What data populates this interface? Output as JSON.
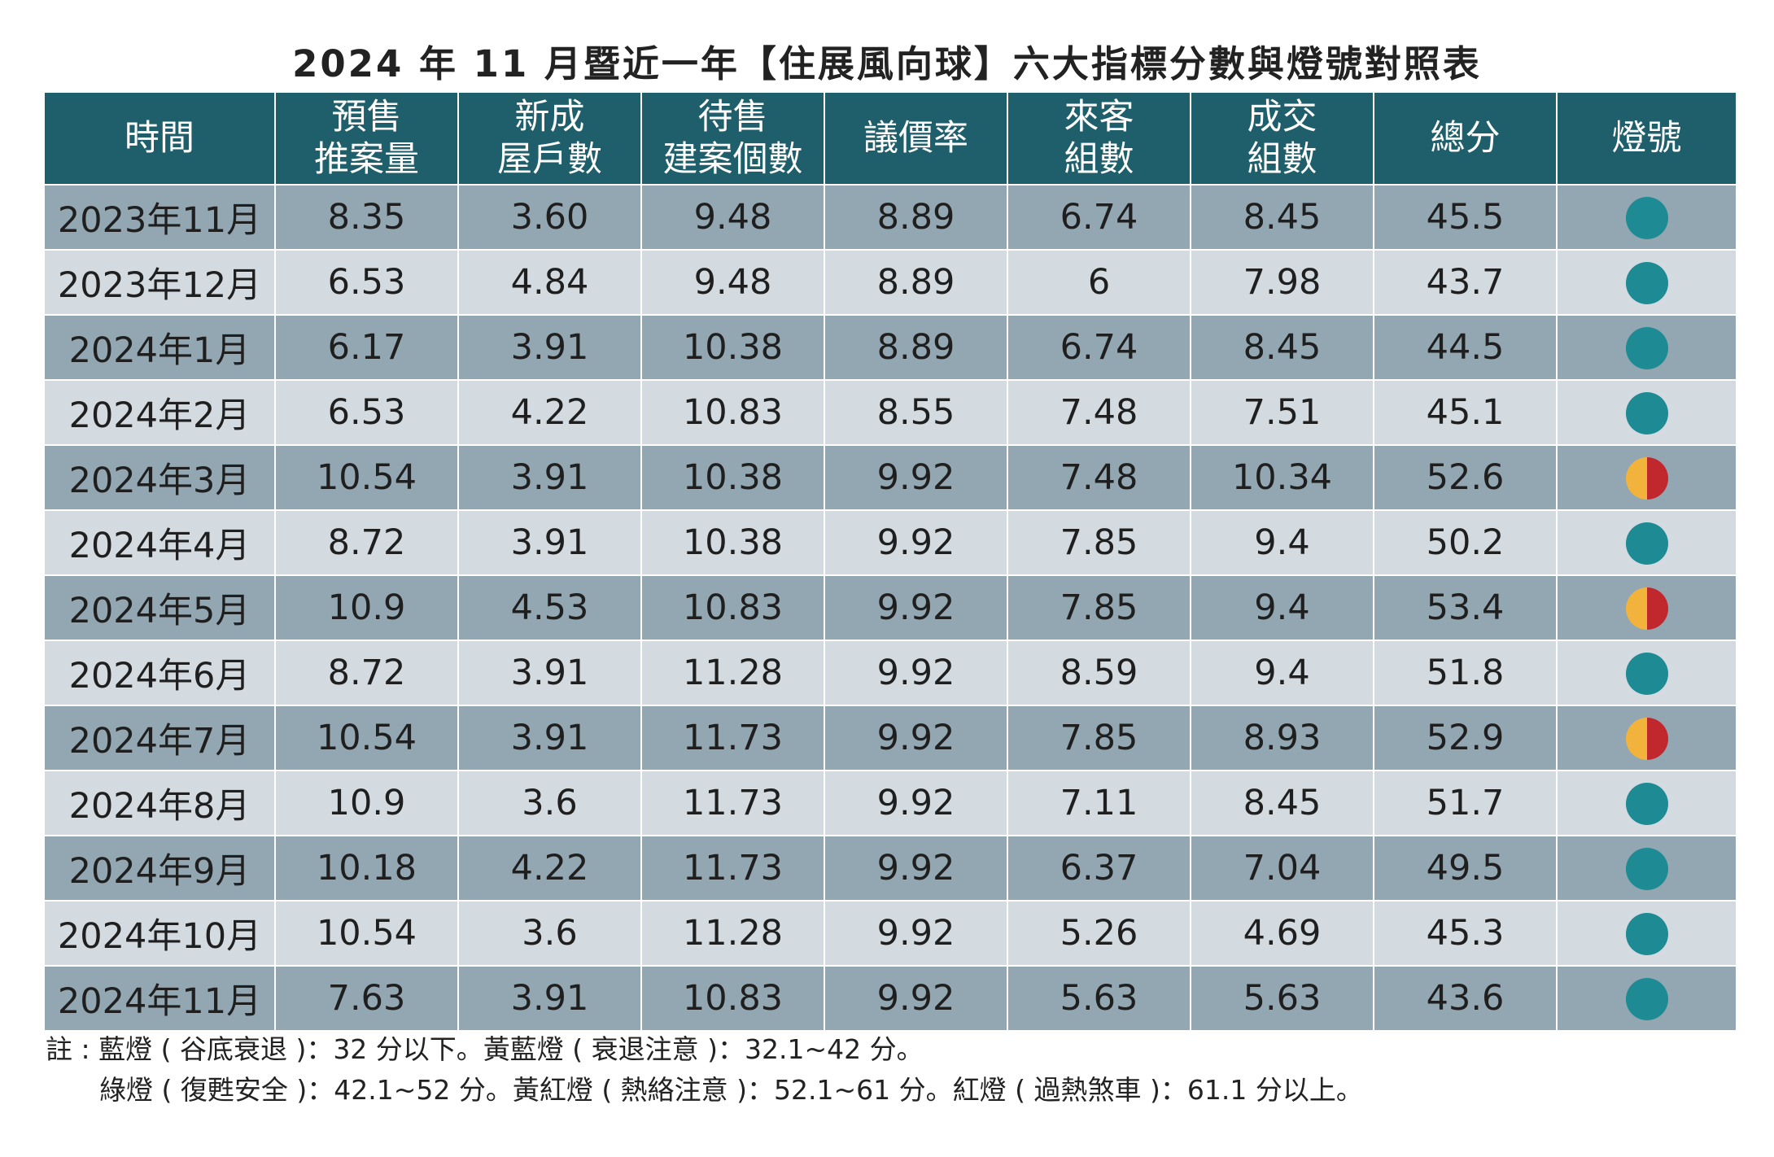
{
  "title": "2024 年 11 月暨近一年【住展風向球】六大指標分數與燈號對照表",
  "colors": {
    "header_bg": "#1f5f6b",
    "row_dark": "#93a7b2",
    "row_light": "#d3dbe0",
    "blue_lamp": "#1e8a93",
    "yellow_lamp": "#f2b33d",
    "red_lamp": "#c0282e"
  },
  "headers": [
    [
      "時間"
    ],
    [
      "預售",
      "推案量"
    ],
    [
      "新成",
      "屋戶數"
    ],
    [
      "待售",
      "建案個數"
    ],
    [
      "議價率"
    ],
    [
      "來客",
      "組數"
    ],
    [
      "成交",
      "組數"
    ],
    [
      "總分"
    ],
    [
      "燈號"
    ]
  ],
  "chart_data": {
    "type": "table",
    "title": "2024 年 11 月暨近一年【住展風向球】六大指標分數與燈號對照表",
    "columns": [
      "時間",
      "預售推案量",
      "新成屋戶數",
      "待售建案個數",
      "議價率",
      "來客組數",
      "成交組數",
      "總分",
      "燈號"
    ],
    "rows": [
      {
        "time": "2023年11月",
        "values": [
          "8.35",
          "3.60",
          "9.48",
          "8.89",
          "6.74",
          "8.45",
          "45.5"
        ],
        "lamp": "blue"
      },
      {
        "time": "2023年12月",
        "values": [
          "6.53",
          "4.84",
          "9.48",
          "8.89",
          "6",
          "7.98",
          "43.7"
        ],
        "lamp": "blue"
      },
      {
        "time": "2024年1月",
        "values": [
          "6.17",
          "3.91",
          "10.38",
          "8.89",
          "6.74",
          "8.45",
          "44.5"
        ],
        "lamp": "blue"
      },
      {
        "time": "2024年2月",
        "values": [
          "6.53",
          "4.22",
          "10.83",
          "8.55",
          "7.48",
          "7.51",
          "45.1"
        ],
        "lamp": "blue"
      },
      {
        "time": "2024年3月",
        "values": [
          "10.54",
          "3.91",
          "10.38",
          "9.92",
          "7.48",
          "10.34",
          "52.6"
        ],
        "lamp": "yellow-red"
      },
      {
        "time": "2024年4月",
        "values": [
          "8.72",
          "3.91",
          "10.38",
          "9.92",
          "7.85",
          "9.4",
          "50.2"
        ],
        "lamp": "blue"
      },
      {
        "time": "2024年5月",
        "values": [
          "10.9",
          "4.53",
          "10.83",
          "9.92",
          "7.85",
          "9.4",
          "53.4"
        ],
        "lamp": "yellow-red"
      },
      {
        "time": "2024年6月",
        "values": [
          "8.72",
          "3.91",
          "11.28",
          "9.92",
          "8.59",
          "9.4",
          "51.8"
        ],
        "lamp": "blue"
      },
      {
        "time": "2024年7月",
        "values": [
          "10.54",
          "3.91",
          "11.73",
          "9.92",
          "7.85",
          "8.93",
          "52.9"
        ],
        "lamp": "yellow-red"
      },
      {
        "time": "2024年8月",
        "values": [
          "10.9",
          "3.6",
          "11.73",
          "9.92",
          "7.11",
          "8.45",
          "51.7"
        ],
        "lamp": "blue"
      },
      {
        "time": "2024年9月",
        "values": [
          "10.18",
          "4.22",
          "11.73",
          "9.92",
          "6.37",
          "7.04",
          "49.5"
        ],
        "lamp": "blue"
      },
      {
        "time": "2024年10月",
        "values": [
          "10.54",
          "3.6",
          "11.28",
          "9.92",
          "5.26",
          "4.69",
          "45.3"
        ],
        "lamp": "blue"
      },
      {
        "time": "2024年11月",
        "values": [
          "7.63",
          "3.91",
          "10.83",
          "9.92",
          "5.63",
          "5.63",
          "43.6"
        ],
        "lamp": "blue"
      }
    ]
  },
  "note": {
    "line1": "註 : 藍燈 ( 谷底衰退 )：32 分以下。黃藍燈 ( 衰退注意 )：32.1~42 分。",
    "line2": "綠燈 ( 復甦安全 )：42.1~52 分。黃紅燈 ( 熱絡注意 )：52.1~61 分。紅燈 ( 過熱煞車 )：61.1 分以上。"
  }
}
